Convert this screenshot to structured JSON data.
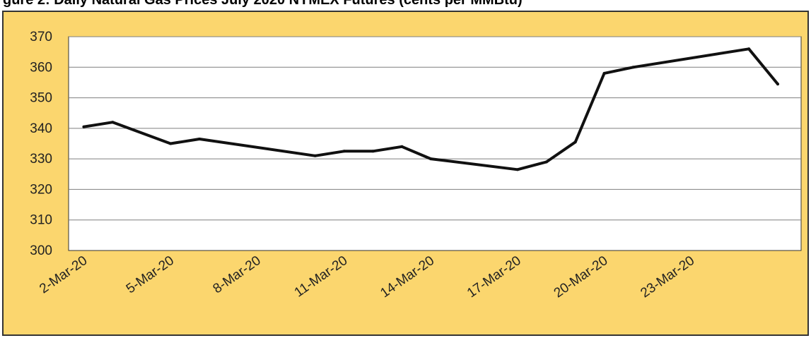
{
  "caption_partial": "gure 2: Daily Natural Gas Prices July 2020 NYMEX Futures (cents per MMBtu)",
  "colors": {
    "frame_background": "#fbd66e",
    "plot_background": "#ffffff",
    "gridline": "#7f7f7f",
    "line": "#111111",
    "border": "#333333"
  },
  "chart_data": {
    "type": "line",
    "title": "",
    "xlabel": "",
    "ylabel": "",
    "ylim": [
      300,
      370
    ],
    "yticks": [
      "300",
      "310",
      "320",
      "330",
      "340",
      "350",
      "360",
      "370"
    ],
    "grid": true,
    "x": [
      "2-Mar-20",
      "3-Mar-20",
      "5-Mar-20",
      "6-Mar-20",
      "10-Mar-20",
      "11-Mar-20",
      "12-Mar-20",
      "13-Mar-20",
      "14-Mar-20",
      "17-Mar-20",
      "18-Mar-20",
      "19-Mar-20",
      "20-Mar-20",
      "21-Mar-20",
      "25-Mar-20",
      "26-Mar-20"
    ],
    "xticks": [
      "2-Mar-20",
      "5-Mar-20",
      "8-Mar-20",
      "11-Mar-20",
      "14-Mar-20",
      "17-Mar-20",
      "20-Mar-20",
      "23-Mar-20"
    ],
    "series": [
      {
        "values": [
          340.5,
          342,
          335,
          336.5,
          331,
          332.5,
          332.5,
          334,
          330,
          326.5,
          329,
          335.5,
          358,
          360,
          366,
          354.5
        ]
      }
    ]
  }
}
